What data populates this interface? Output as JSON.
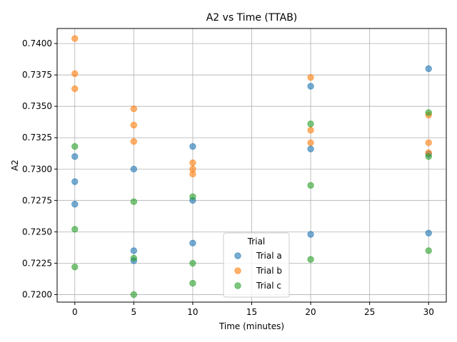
{
  "chart_data": {
    "type": "scatter",
    "title": "A2 vs Time (TTAB)",
    "xlabel": "Time (minutes)",
    "ylabel": "A2",
    "xlim": [
      -1.5,
      31.5
    ],
    "ylim": [
      0.7194,
      0.7412
    ],
    "xticks": [
      0,
      5,
      10,
      15,
      20,
      25,
      30
    ],
    "yticks": [
      0.72,
      0.7225,
      0.725,
      0.7275,
      0.73,
      0.7325,
      0.735,
      0.7375,
      0.74
    ],
    "grid": true,
    "legend": {
      "title": "Trial",
      "placement": "lower-center"
    },
    "series": [
      {
        "name": "Trial a",
        "color": "#1f77b4",
        "points": [
          [
            0,
            0.731
          ],
          [
            0,
            0.729
          ],
          [
            0,
            0.7272
          ],
          [
            5,
            0.73
          ],
          [
            5,
            0.7235
          ],
          [
            5,
            0.7227
          ],
          [
            10,
            0.7318
          ],
          [
            10,
            0.7275
          ],
          [
            10,
            0.7241
          ],
          [
            20,
            0.7366
          ],
          [
            20,
            0.7316
          ],
          [
            20,
            0.7248
          ],
          [
            30,
            0.738
          ],
          [
            30,
            0.7312
          ],
          [
            30,
            0.7249
          ]
        ]
      },
      {
        "name": "Trial b",
        "color": "#ff7f0e",
        "points": [
          [
            0,
            0.7404
          ],
          [
            0,
            0.7376
          ],
          [
            0,
            0.7364
          ],
          [
            5,
            0.7348
          ],
          [
            5,
            0.7335
          ],
          [
            5,
            0.7322
          ],
          [
            10,
            0.7305
          ],
          [
            10,
            0.73
          ],
          [
            10,
            0.7296
          ],
          [
            20,
            0.7373
          ],
          [
            20,
            0.7331
          ],
          [
            20,
            0.7321
          ],
          [
            30,
            0.7343
          ],
          [
            30,
            0.7321
          ],
          [
            30,
            0.7313
          ]
        ]
      },
      {
        "name": "Trial c",
        "color": "#2ca02c",
        "points": [
          [
            0,
            0.7318
          ],
          [
            0,
            0.7252
          ],
          [
            0,
            0.7222
          ],
          [
            5,
            0.7274
          ],
          [
            5,
            0.7229
          ],
          [
            5,
            0.72
          ],
          [
            10,
            0.7278
          ],
          [
            10,
            0.7225
          ],
          [
            10,
            0.7209
          ],
          [
            20,
            0.7336
          ],
          [
            20,
            0.7287
          ],
          [
            20,
            0.7228
          ],
          [
            30,
            0.7345
          ],
          [
            30,
            0.731
          ],
          [
            30,
            0.7235
          ]
        ]
      }
    ]
  }
}
